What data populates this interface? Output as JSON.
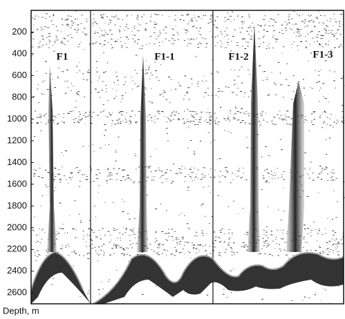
{
  "chart_data": {
    "type": "echogram",
    "ylabel": "Depth, m",
    "ylim": [
      0,
      2700
    ],
    "yticks": [
      200,
      400,
      600,
      800,
      1000,
      1200,
      1400,
      1600,
      1800,
      2000,
      2200,
      2400,
      2600
    ],
    "inverted": true,
    "annotations": [
      "F1",
      "F1-1",
      "F1-2",
      "F1-3"
    ]
  }
}
